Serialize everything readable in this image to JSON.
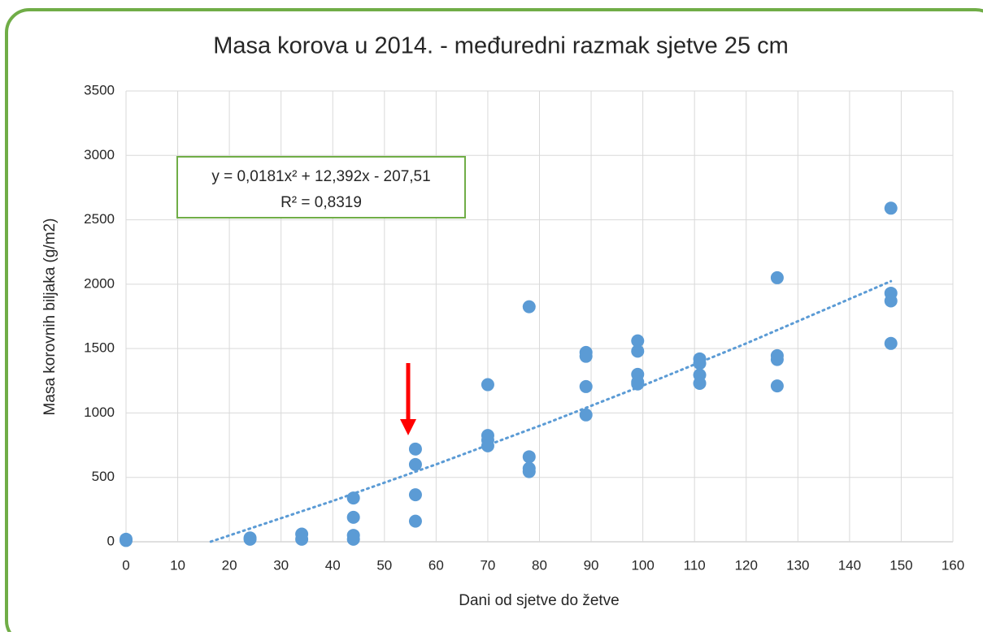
{
  "chart_data": {
    "type": "scatter",
    "title": "Masa korova u 2014. - međuredni razmak sjetve 25 cm",
    "x_label": "Dani od sjetve do žetve",
    "y_label": "Masa korovnih biljaka (g/m2)",
    "xlim": [
      0,
      160
    ],
    "xticks": [
      0,
      10,
      20,
      30,
      40,
      50,
      60,
      70,
      80,
      90,
      100,
      110,
      120,
      130,
      140,
      150,
      160
    ],
    "ylim": [
      0,
      3500
    ],
    "yticks": [
      0,
      500,
      1000,
      1500,
      2000,
      2500,
      3000,
      3500
    ],
    "grid": true,
    "series": [
      {
        "color": "#5b9bd5",
        "x": [
          0,
          0,
          24,
          24,
          34,
          34,
          44,
          44,
          44,
          44,
          56,
          56,
          56,
          56,
          70,
          70,
          70,
          70,
          78,
          78,
          78,
          78,
          89,
          89,
          89,
          89,
          99,
          99,
          99,
          99,
          99,
          111,
          111,
          111,
          111,
          126,
          126,
          126,
          126,
          148,
          148,
          148,
          148
        ],
        "values": [
          20,
          10,
          30,
          20,
          60,
          20,
          340,
          190,
          50,
          20,
          720,
          600,
          365,
          160,
          1220,
          825,
          790,
          745,
          1825,
          660,
          570,
          545,
          1470,
          1440,
          1205,
          985,
          1560,
          1480,
          1300,
          1240,
          1225,
          1420,
          1385,
          1295,
          1230,
          2050,
          1445,
          1415,
          1210,
          2590,
          1930,
          1870,
          1540
        ]
      }
    ],
    "trendline": {
      "color": "#5b9bd5",
      "x": [
        16.4,
        40,
        60,
        82,
        100,
        120,
        148
      ],
      "values": [
        1,
        317,
        601,
        930,
        1213,
        1540,
        2023
      ]
    },
    "annotations": [
      "y = 0,0181x² + 12,392x - 207,51",
      "R² = 0,8319"
    ]
  }
}
